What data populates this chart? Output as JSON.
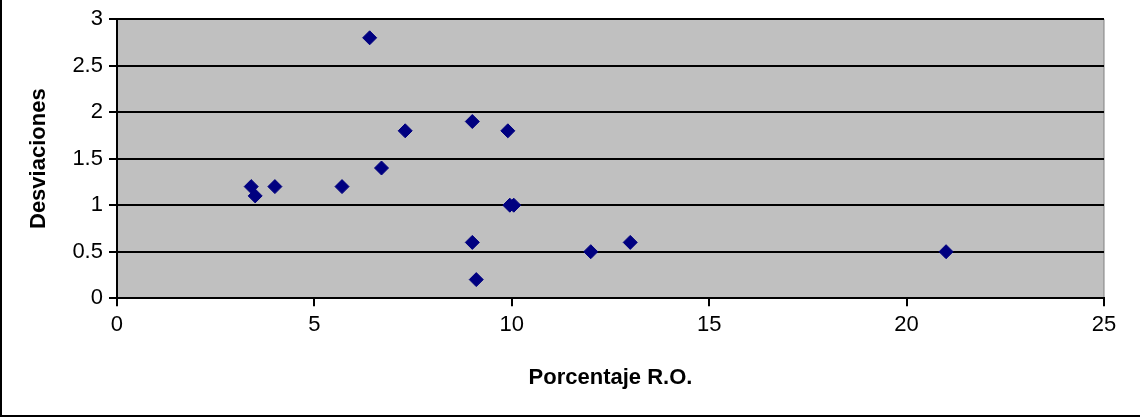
{
  "chart_data": {
    "type": "scatter",
    "xlabel": "Porcentaje R.O.",
    "ylabel": "Desviaciones",
    "x": [
      3.4,
      3.5,
      4,
      5.7,
      6.4,
      6.7,
      7.3,
      9,
      9.9,
      9,
      9.1,
      9.95,
      10.05,
      12,
      13,
      21
    ],
    "series": [
      {
        "color": "#000080",
        "values": [
          1.2,
          1.1,
          1.2,
          1.2,
          2.8,
          1.4,
          1.8,
          1.9,
          1.8,
          0.6,
          0.2,
          1,
          1,
          0.5,
          0.6,
          0.5
        ]
      }
    ],
    "xlim": [
      0,
      25
    ],
    "xticks": [
      0,
      5,
      10,
      15,
      20,
      25
    ],
    "ylim": [
      0,
      3
    ],
    "yticks": [
      0,
      0.5,
      1,
      1.5,
      2,
      2.5,
      3
    ],
    "grid": "y",
    "legend": false,
    "marker": "diamond"
  }
}
